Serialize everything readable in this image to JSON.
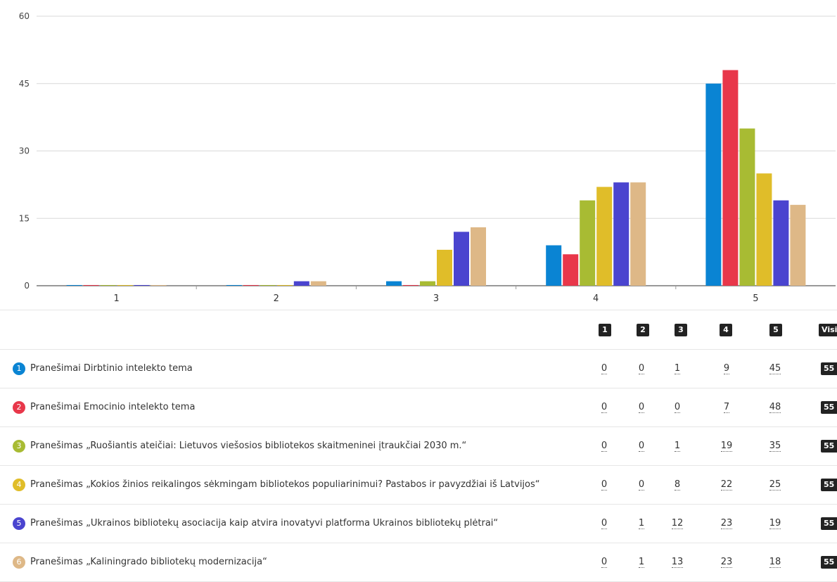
{
  "chart_data": {
    "type": "bar",
    "categories": [
      "1",
      "2",
      "3",
      "4",
      "5"
    ],
    "ylim": [
      0,
      60
    ],
    "yticks": [
      0,
      15,
      30,
      45,
      60
    ],
    "grid": true,
    "series": [
      {
        "name": "Pranešimai Dirbtinio intelekto tema",
        "color": "#0a84d3",
        "values": [
          0,
          0,
          1,
          9,
          45
        ]
      },
      {
        "name": "Pranešimai Emocinio intelekto tema",
        "color": "#e8374a",
        "values": [
          0,
          0,
          0,
          7,
          48
        ]
      },
      {
        "name": "Pranešimas „Ruošiantis ateičiai: Lietuvos viešosios bibliotekos skaitmeninei įtraukčiai 2030 m.“",
        "color": "#a8bb33",
        "values": [
          0,
          0,
          1,
          19,
          35
        ]
      },
      {
        "name": "Pranešimas „Kokios žinios reikalingos sėkmingam bibliotekos populiarinimui? Pastabos ir pavyzdžiai iš Latvijos“",
        "color": "#e0bd29",
        "values": [
          0,
          0,
          8,
          22,
          25
        ]
      },
      {
        "name": "Pranešimas „Ukrainos bibliotekų asociacija kaip atvira inovatyvi platforma Ukrainos bibliotekų plėtrai“",
        "color": "#4a44cf",
        "values": [
          0,
          1,
          12,
          23,
          19
        ]
      },
      {
        "name": "Pranešimas „Kaliningrado bibliotekų modernizacija“",
        "color": "#deb887",
        "values": [
          0,
          1,
          13,
          23,
          18
        ]
      }
    ]
  },
  "table": {
    "headers": [
      "1",
      "2",
      "3",
      "4",
      "5"
    ],
    "total_header": "Visi",
    "rows": [
      {
        "number": "1",
        "label": "Pranešimai Dirbtinio intelekto tema",
        "values": [
          "0",
          "0",
          "1",
          "9",
          "45"
        ],
        "total": "55"
      },
      {
        "number": "2",
        "label": "Pranešimai Emocinio intelekto tema",
        "values": [
          "0",
          "0",
          "0",
          "7",
          "48"
        ],
        "total": "55"
      },
      {
        "number": "3",
        "label": "Pranešimas „Ruošiantis ateičiai: Lietuvos viešosios bibliotekos skaitmeninei įtraukčiai 2030 m.“",
        "values": [
          "0",
          "0",
          "1",
          "19",
          "35"
        ],
        "total": "55"
      },
      {
        "number": "4",
        "label": "Pranešimas „Kokios žinios reikalingos sėkmingam bibliotekos populiarinimui? Pastabos ir pavyzdžiai iš Latvijos“",
        "values": [
          "0",
          "0",
          "8",
          "22",
          "25"
        ],
        "total": "55"
      },
      {
        "number": "5",
        "label": "Pranešimas „Ukrainos bibliotekų asociacija kaip atvira inovatyvi platforma Ukrainos bibliotekų plėtrai“",
        "values": [
          "0",
          "1",
          "12",
          "23",
          "19"
        ],
        "total": "55"
      },
      {
        "number": "6",
        "label": "Pranešimas „Kaliningrado bibliotekų modernizacija“",
        "values": [
          "0",
          "1",
          "13",
          "23",
          "18"
        ],
        "total": "55"
      }
    ]
  }
}
